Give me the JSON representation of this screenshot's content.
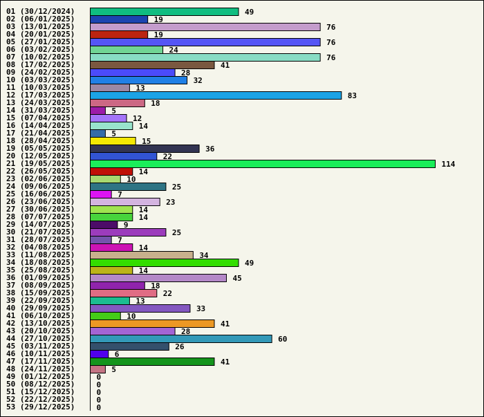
{
  "chart_data": {
    "type": "bar",
    "orientation": "horizontal",
    "title": "",
    "xlabel": "",
    "ylabel": "",
    "xlim": [
      0,
      114
    ],
    "grid": false,
    "categories": [
      "01 (30/12/2024)",
      "02 (06/01/2025)",
      "03 (13/01/2025)",
      "04 (20/01/2025)",
      "05 (27/01/2025)",
      "06 (03/02/2025)",
      "07 (10/02/2025)",
      "08 (17/02/2025)",
      "09 (24/02/2025)",
      "10 (03/03/2025)",
      "11 (10/03/2025)",
      "12 (17/03/2025)",
      "13 (24/03/2025)",
      "14 (31/03/2025)",
      "15 (07/04/2025)",
      "16 (14/04/2025)",
      "17 (21/04/2025)",
      "18 (28/04/2025)",
      "19 (05/05/2025)",
      "20 (12/05/2025)",
      "21 (19/05/2025)",
      "22 (26/05/2025)",
      "23 (02/06/2025)",
      "24 (09/06/2025)",
      "25 (16/06/2025)",
      "26 (23/06/2025)",
      "27 (30/06/2025)",
      "28 (07/07/2025)",
      "29 (14/07/2025)",
      "30 (21/07/2025)",
      "31 (28/07/2025)",
      "32 (04/08/2025)",
      "33 (11/08/2025)",
      "34 (18/08/2025)",
      "35 (25/08/2025)",
      "36 (01/09/2025)",
      "37 (08/09/2025)",
      "38 (15/09/2025)",
      "39 (22/09/2025)",
      "40 (29/09/2025)",
      "41 (06/10/2025)",
      "42 (13/10/2025)",
      "43 (20/10/2025)",
      "44 (27/10/2025)",
      "45 (03/11/2025)",
      "46 (10/11/2025)",
      "47 (17/11/2025)",
      "48 (24/11/2025)",
      "49 (01/12/2025)",
      "50 (08/12/2025)",
      "51 (15/12/2025)",
      "52 (22/12/2025)",
      "53 (29/12/2025)"
    ],
    "values": [
      49,
      19,
      76,
      19,
      76,
      24,
      76,
      41,
      28,
      32,
      13,
      83,
      18,
      5,
      12,
      14,
      5,
      15,
      36,
      22,
      114,
      14,
      10,
      25,
      7,
      23,
      14,
      14,
      9,
      25,
      7,
      14,
      34,
      49,
      14,
      45,
      18,
      22,
      13,
      33,
      10,
      41,
      28,
      60,
      26,
      6,
      41,
      5,
      0,
      0,
      0,
      0,
      0
    ],
    "colors": [
      "#10bd80",
      "#1c44b0",
      "#c49ccc",
      "#bb2410",
      "#5555f5",
      "#70d494",
      "#88dcc4",
      "#7a5840",
      "#4b4bfa",
      "#2080e6",
      "#9c88a4",
      "#1ca3e6",
      "#cc6884",
      "#9c1ca8",
      "#a474f8",
      "#98e4cc",
      "#346ca8",
      "#f4e804",
      "#323452",
      "#3254d4",
      "#1aee5a",
      "#c01008",
      "#a8d870",
      "#2e7484",
      "#dc14f4",
      "#d4b4e0",
      "#a0e450",
      "#48d43c",
      "#4c0c68",
      "#9c3cbc",
      "#7454ac",
      "#cc14b4",
      "#c8b08c",
      "#33dd00",
      "#bcb418",
      "#b488c8",
      "#9024ac",
      "#e06c84",
      "#1cbc90",
      "#8458c0",
      "#44cc18",
      "#ec9824",
      "#a464d4",
      "#3399b8",
      "#34506c",
      "#5000ec",
      "#14941c",
      "#c47484",
      "#000000",
      "#000000",
      "#000000",
      "#000000",
      "#000000"
    ]
  }
}
